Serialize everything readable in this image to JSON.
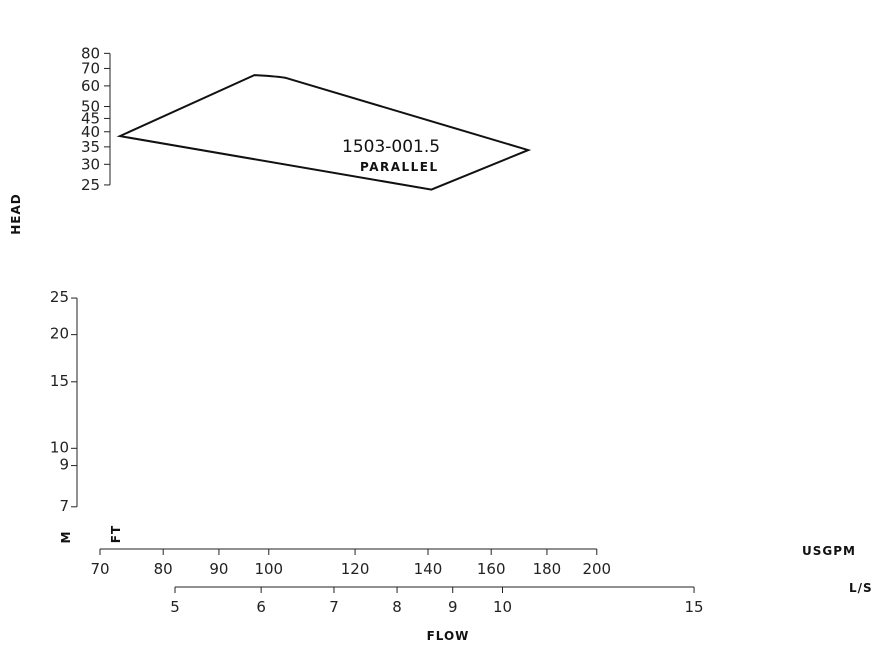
{
  "chart_data": {
    "type": "line",
    "title": "",
    "xlabel": "FLOW",
    "ylabel": "HEAD",
    "x_scale": "log",
    "y_scale": "log",
    "x_axes": [
      {
        "unit": "USGPM",
        "ticks": [
          "70",
          "80",
          "90",
          "100",
          "120",
          "140",
          "160",
          "180",
          "200"
        ]
      },
      {
        "unit": "L/S",
        "ticks": [
          "5",
          "6",
          "7",
          "8",
          "9",
          "10",
          "15"
        ]
      }
    ],
    "y_axes": [
      {
        "unit": "M",
        "ticks": [
          "7",
          "9",
          "10",
          "15",
          "20",
          "25"
        ]
      },
      {
        "unit": "FT",
        "ticks": [
          "25",
          "30",
          "35",
          "40",
          "45",
          "50",
          "60",
          "70",
          "80"
        ]
      }
    ],
    "series": [
      {
        "name": "1503-001.5",
        "sublabel": "PARALLEL",
        "x_unit": "USGPM",
        "y_unit": "FT",
        "points": [
          {
            "x": 73,
            "y": 38.5
          },
          {
            "x": 97,
            "y": 66
          },
          {
            "x": 101,
            "y": 65.5
          },
          {
            "x": 103.5,
            "y": 64.5
          },
          {
            "x": 173,
            "y": 34
          },
          {
            "x": 159,
            "y": 29.5
          },
          {
            "x": 141,
            "y": 24
          }
        ],
        "closed": true
      }
    ]
  }
}
